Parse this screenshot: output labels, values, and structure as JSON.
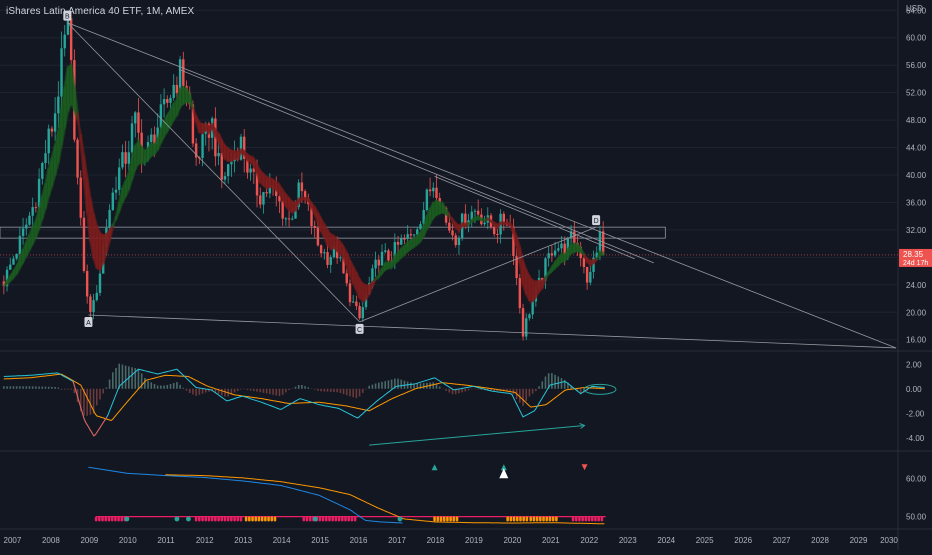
{
  "header": {
    "title": "iShares Latin America 40 ETF, 1M, AMEX"
  },
  "axis": {
    "currency": "USD"
  },
  "price": {
    "last_value": "28.35",
    "countdown": "24d 17h",
    "last_price": 28.35,
    "range_box": [
      30.8,
      32.4
    ],
    "hline": 28.35
  },
  "colors": {
    "background": "#131722",
    "up": "#26a69a",
    "down": "#ef5350",
    "ribbon_green": "#1b5e20",
    "ribbon_red": "#7f1d1d",
    "macd": "#26c6da",
    "signal": "#ff9800",
    "rsi_line": "#ff9800",
    "rsi_blue": "#1e88e5",
    "magenta": "#e91e63",
    "trend": "#9598a1",
    "price_label": "#ef5350"
  },
  "x_axis": {
    "years": [
      "2007",
      "2008",
      "2009",
      "2010",
      "2011",
      "2012",
      "2013",
      "2014",
      "2015",
      "2016",
      "2017",
      "2018",
      "2019",
      "2020",
      "2021",
      "2022",
      "2023",
      "2024",
      "2025",
      "2026",
      "2027",
      "2028",
      "2029",
      "2030"
    ]
  },
  "chart_data": [
    {
      "type": "candlestick",
      "pane": "price",
      "interval": "1M",
      "ylim": [
        14.5,
        65.5
      ],
      "y_ticks": [
        "16.00",
        "20.00",
        "24.00",
        "28.00",
        "32.00",
        "36.00",
        "40.00",
        "44.00",
        "48.00",
        "52.00",
        "56.00",
        "60.00",
        "64.00"
      ],
      "anchors": [
        [
          2006.8,
          24.5
        ],
        [
          2007.2,
          30
        ],
        [
          2007.6,
          36
        ],
        [
          2007.9,
          44
        ],
        [
          2008.1,
          48
        ],
        [
          2008.35,
          58
        ],
        [
          2008.45,
          62
        ],
        [
          2008.55,
          55
        ],
        [
          2008.75,
          36
        ],
        [
          2008.95,
          22
        ],
        [
          2009.1,
          20
        ],
        [
          2009.3,
          26
        ],
        [
          2009.5,
          34
        ],
        [
          2009.75,
          40
        ],
        [
          2010.0,
          43
        ],
        [
          2010.2,
          48
        ],
        [
          2010.45,
          42
        ],
        [
          2010.7,
          46
        ],
        [
          2010.95,
          49
        ],
        [
          2011.2,
          53
        ],
        [
          2011.4,
          55
        ],
        [
          2011.6,
          52
        ],
        [
          2011.75,
          42
        ],
        [
          2011.95,
          44
        ],
        [
          2012.2,
          48
        ],
        [
          2012.45,
          39
        ],
        [
          2012.7,
          42
        ],
        [
          2012.95,
          45
        ],
        [
          2013.2,
          40
        ],
        [
          2013.45,
          37
        ],
        [
          2013.7,
          38
        ],
        [
          2013.95,
          36
        ],
        [
          2014.2,
          33
        ],
        [
          2014.5,
          38
        ],
        [
          2014.7,
          35
        ],
        [
          2014.95,
          30
        ],
        [
          2015.2,
          28
        ],
        [
          2015.45,
          29
        ],
        [
          2015.75,
          23
        ],
        [
          2016.05,
          19
        ],
        [
          2016.3,
          24
        ],
        [
          2016.55,
          28
        ],
        [
          2016.85,
          28
        ],
        [
          2017.1,
          30
        ],
        [
          2017.4,
          31
        ],
        [
          2017.7,
          35
        ],
        [
          2017.95,
          39
        ],
        [
          2018.1,
          38
        ],
        [
          2018.3,
          33
        ],
        [
          2018.55,
          31
        ],
        [
          2018.8,
          34
        ],
        [
          2019.1,
          35
        ],
        [
          2019.35,
          33
        ],
        [
          2019.6,
          32
        ],
        [
          2019.85,
          34
        ],
        [
          2020.0,
          32
        ],
        [
          2020.17,
          23
        ],
        [
          2020.3,
          17
        ],
        [
          2020.45,
          20
        ],
        [
          2020.65,
          23
        ],
        [
          2020.9,
          27
        ],
        [
          2021.1,
          30
        ],
        [
          2021.35,
          29
        ],
        [
          2021.6,
          31
        ],
        [
          2021.85,
          28
        ],
        [
          2022.0,
          24
        ],
        [
          2022.15,
          28
        ],
        [
          2022.3,
          31
        ],
        [
          2022.45,
          28.35
        ]
      ],
      "annotations": [
        {
          "text": "B",
          "x": 2008.45,
          "y": 62.2,
          "pos": "above"
        },
        {
          "text": "A",
          "x": 2009.0,
          "y": 19.6,
          "pos": "below"
        },
        {
          "text": "C",
          "x": 2016.05,
          "y": 18.6,
          "pos": "below"
        },
        {
          "text": "D",
          "x": 2022.2,
          "y": 32.4,
          "pos": "above"
        }
      ],
      "trendlines": [
        [
          [
            2008.45,
            62.2
          ],
          [
            2030.0,
            14.8
          ]
        ],
        [
          [
            2008.45,
            62.2
          ],
          [
            2016.05,
            18.6
          ]
        ],
        [
          [
            2009.0,
            19.6
          ],
          [
            2030.0,
            14.8
          ]
        ],
        [
          [
            2016.05,
            18.6
          ],
          [
            2022.2,
            32.4
          ]
        ],
        [
          [
            2011.35,
            55.4
          ],
          [
            2023.7,
            27.2
          ]
        ],
        [
          [
            2018.0,
            39.8
          ],
          [
            2023.2,
            27.8
          ]
        ]
      ]
    },
    {
      "type": "histogram+line",
      "pane": "macd",
      "ylim": [
        -5.0,
        3.0
      ],
      "y_ticks": [
        "2.00",
        "0.00",
        "-2.00",
        "-4.00"
      ],
      "macd": [
        [
          2006.8,
          1.0
        ],
        [
          2007.5,
          1.1
        ],
        [
          2008.2,
          1.3
        ],
        [
          2008.6,
          0.6
        ],
        [
          2008.9,
          -2.6
        ],
        [
          2009.15,
          -3.9
        ],
        [
          2009.5,
          -2.2
        ],
        [
          2009.8,
          0.2
        ],
        [
          2010.3,
          1.6
        ],
        [
          2010.8,
          1.2
        ],
        [
          2011.3,
          1.6
        ],
        [
          2011.8,
          0.1
        ],
        [
          2012.2,
          -0.1
        ],
        [
          2012.6,
          -1.0
        ],
        [
          2013.0,
          -0.6
        ],
        [
          2013.5,
          -1.1
        ],
        [
          2014.0,
          -1.7
        ],
        [
          2014.5,
          -0.8
        ],
        [
          2015.0,
          -1.3
        ],
        [
          2015.5,
          -1.6
        ],
        [
          2016.0,
          -2.4
        ],
        [
          2016.5,
          -1.0
        ],
        [
          2017.0,
          0.2
        ],
        [
          2017.5,
          0.4
        ],
        [
          2018.0,
          0.9
        ],
        [
          2018.5,
          -0.1
        ],
        [
          2019.0,
          0.2
        ],
        [
          2019.5,
          -0.2
        ],
        [
          2020.0,
          -0.4
        ],
        [
          2020.3,
          -2.3
        ],
        [
          2020.6,
          -1.8
        ],
        [
          2021.0,
          0.3
        ],
        [
          2021.4,
          0.6
        ],
        [
          2021.8,
          -0.4
        ],
        [
          2022.1,
          0.2
        ],
        [
          2022.45,
          0.1
        ]
      ],
      "signal": [
        [
          2006.8,
          0.8
        ],
        [
          2007.5,
          0.9
        ],
        [
          2008.3,
          1.2
        ],
        [
          2008.8,
          0.3
        ],
        [
          2009.2,
          -2.2
        ],
        [
          2009.6,
          -2.6
        ],
        [
          2010.0,
          -1.1
        ],
        [
          2010.5,
          0.7
        ],
        [
          2011.0,
          1.1
        ],
        [
          2011.6,
          1.0
        ],
        [
          2012.1,
          0.2
        ],
        [
          2012.8,
          -0.5
        ],
        [
          2013.5,
          -0.8
        ],
        [
          2014.2,
          -1.2
        ],
        [
          2015.0,
          -1.1
        ],
        [
          2015.7,
          -1.4
        ],
        [
          2016.3,
          -1.8
        ],
        [
          2016.9,
          -0.8
        ],
        [
          2017.5,
          0.0
        ],
        [
          2018.2,
          0.5
        ],
        [
          2018.8,
          0.3
        ],
        [
          2019.5,
          0.0
        ],
        [
          2020.1,
          -0.3
        ],
        [
          2020.5,
          -1.5
        ],
        [
          2020.9,
          -1.3
        ],
        [
          2021.4,
          -0.1
        ],
        [
          2021.9,
          0.1
        ],
        [
          2022.45,
          0.0
        ]
      ],
      "arrow": [
        [
          2016.3,
          -4.6
        ],
        [
          2021.9,
          -3.0
        ]
      ],
      "ellipse": [
        2022.3,
        -0.05
      ]
    },
    {
      "type": "line+markers",
      "pane": "rsi",
      "ylim": [
        47.0,
        67.0
      ],
      "y_ticks": [
        "60.00",
        "50.00"
      ],
      "line_orange": [
        [
          2011.0,
          61.0
        ],
        [
          2012.0,
          60.8
        ],
        [
          2013.0,
          60.2
        ],
        [
          2014.0,
          59.2
        ],
        [
          2015.0,
          57.6
        ],
        [
          2015.8,
          55.8
        ],
        [
          2016.5,
          52.4
        ],
        [
          2017.2,
          49.4
        ],
        [
          2018.0,
          48.6
        ],
        [
          2019.0,
          48.4
        ],
        [
          2020.0,
          48.3
        ],
        [
          2021.0,
          48.4
        ],
        [
          2022.45,
          48.1
        ]
      ],
      "line_blue": [
        [
          2009.0,
          63.0
        ],
        [
          2010.0,
          61.4
        ],
        [
          2011.0,
          60.8
        ],
        [
          2012.0,
          60.3
        ],
        [
          2013.0,
          59.4
        ],
        [
          2014.0,
          58.2
        ],
        [
          2015.0,
          55.6
        ],
        [
          2015.8,
          51.8
        ],
        [
          2016.2,
          49.0
        ],
        [
          2016.6,
          48.6
        ],
        [
          2017.2,
          48.3
        ]
      ],
      "hline_magenta": 50.0,
      "dot_bands": [
        {
          "x0": 2009.2,
          "x1": 2010.0,
          "color": "#e91e63"
        },
        {
          "x0": 2011.8,
          "x1": 2013.0,
          "color": "#e91e63"
        },
        {
          "x0": 2013.1,
          "x1": 2013.9,
          "color": "#ff9800"
        },
        {
          "x0": 2014.6,
          "x1": 2016.0,
          "color": "#e91e63"
        },
        {
          "x0": 2018.0,
          "x1": 2018.6,
          "color": "#ff9800"
        },
        {
          "x0": 2019.9,
          "x1": 2020.4,
          "color": "#ff9800"
        },
        {
          "x0": 2020.5,
          "x1": 2021.2,
          "color": "#ff9800"
        },
        {
          "x0": 2021.6,
          "x1": 2022.4,
          "color": "#e91e63"
        }
      ],
      "teal_dots": [
        2010.0,
        2011.3,
        2011.6,
        2014.9,
        2017.1
      ],
      "signals": [
        {
          "type": "up",
          "x": 2018.0,
          "y": 63.0,
          "color": "#26a69a"
        },
        {
          "type": "up",
          "x": 2019.8,
          "y": 63.0,
          "color": "#26a69a"
        },
        {
          "type": "up-big",
          "x": 2019.8,
          "y": 61.4,
          "color": "#ffffff"
        },
        {
          "type": "down",
          "x": 2021.9,
          "y": 63.0,
          "color": "#ef5350"
        }
      ]
    }
  ]
}
